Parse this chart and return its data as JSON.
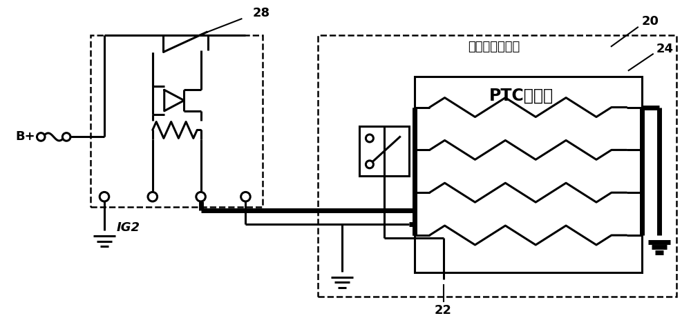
{
  "bg": "#ffffff",
  "lc": "#000000",
  "lw": 2.2,
  "tlw": 5.0,
  "dlw": 1.8,
  "label_28": "28",
  "label_20": "20",
  "label_22": "22",
  "label_24": "24",
  "label_B": "B+",
  "label_IG2": "IG2",
  "label_diesel": "柴油燃料滤清器",
  "label_ptc": "PTC加燭器",
  "fs_num": 13,
  "fs_label": 13,
  "fs_ptc": 17,
  "fs_bp": 13,
  "fs_ig2": 13
}
